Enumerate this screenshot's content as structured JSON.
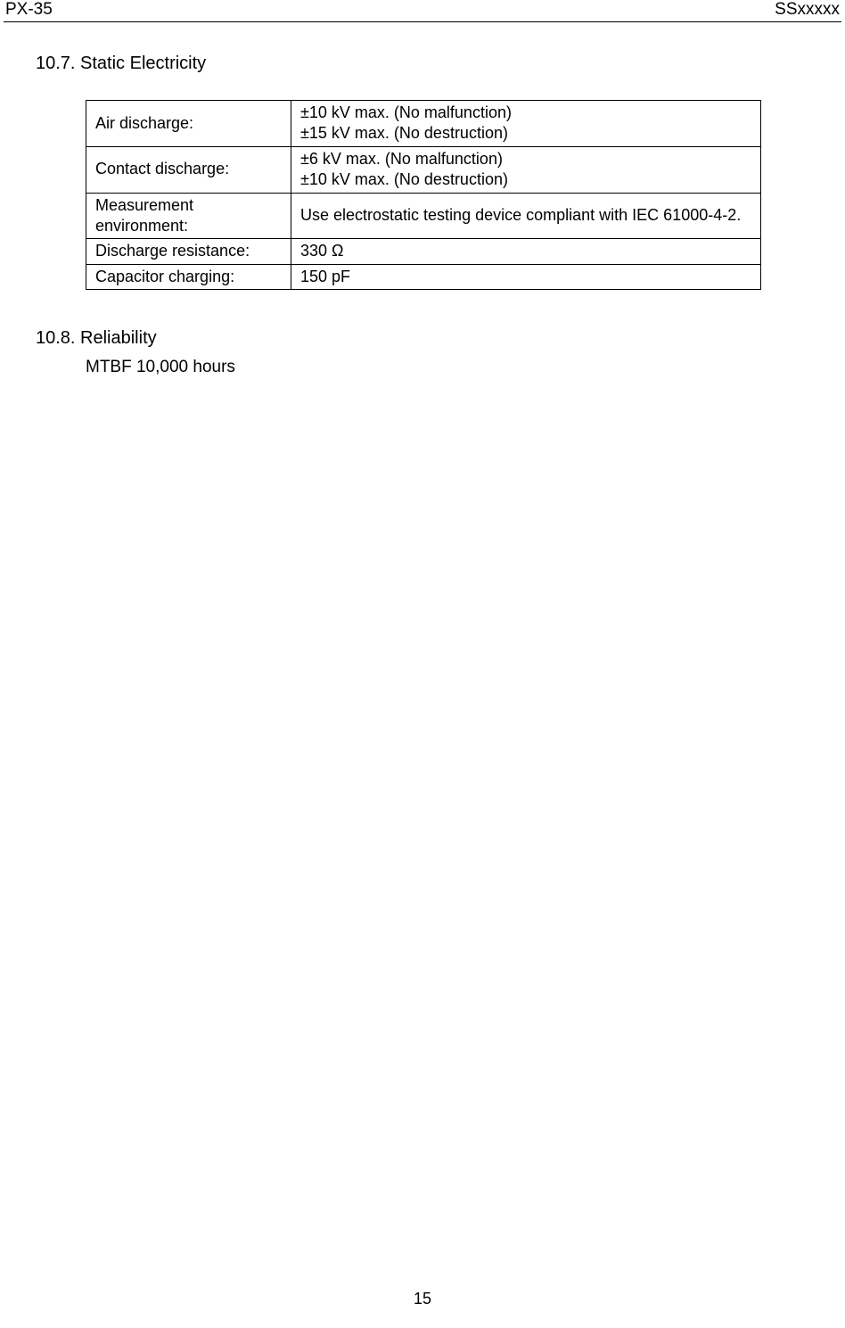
{
  "header": {
    "left": "PX-35",
    "right": "SSxxxxx"
  },
  "sections": {
    "s107": {
      "title": "10.7. Static Electricity"
    },
    "s108": {
      "title": "10.8. Reliability",
      "body": "MTBF 10,000 hours"
    }
  },
  "table": {
    "rows": [
      {
        "key": "Air discharge:",
        "val_line1": "±10 kV max. (No malfunction)",
        "val_line2": "±15 kV max. (No destruction)"
      },
      {
        "key": "Contact discharge:",
        "val_line1": "±6 kV max. (No malfunction)",
        "val_line2": "±10 kV max. (No destruction)"
      },
      {
        "key_line1": "Measurement",
        "key_line2": "environment:",
        "val": "Use electrostatic testing device compliant with IEC 61000-4-2."
      },
      {
        "key": "Discharge resistance:",
        "val": "330 Ω"
      },
      {
        "key": "Capacitor charging:",
        "val": "150 pF"
      }
    ]
  },
  "footer": {
    "page_number": "15"
  }
}
